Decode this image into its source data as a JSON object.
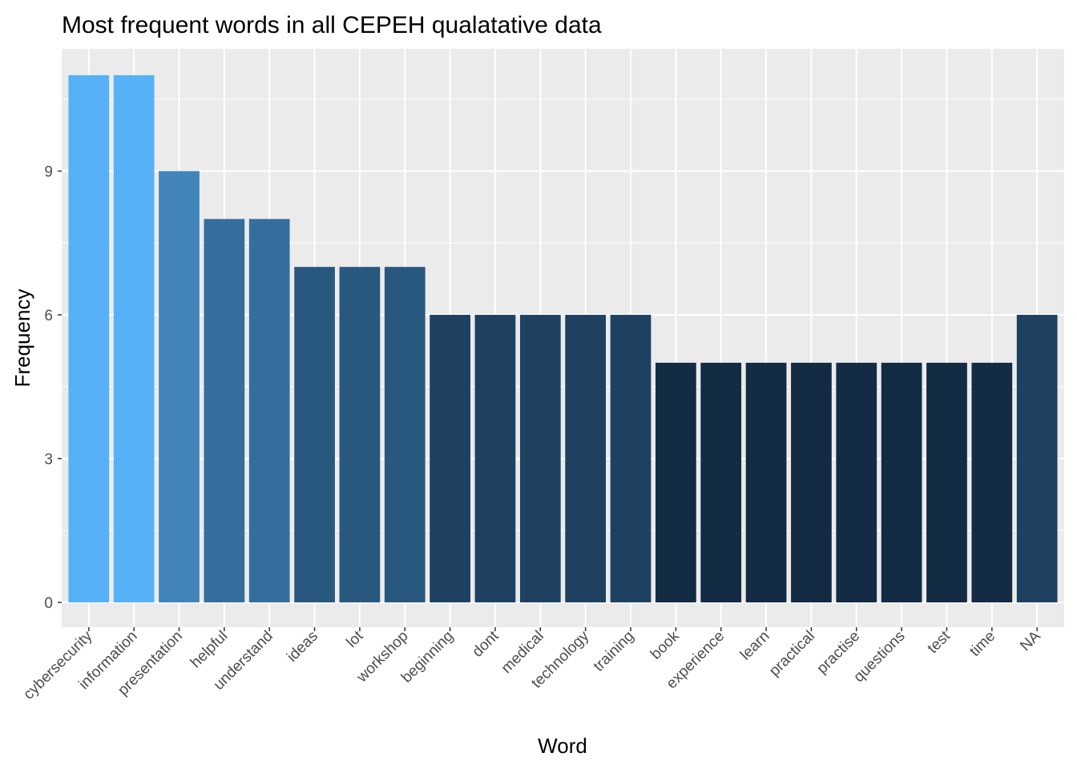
{
  "chart_data": {
    "type": "bar",
    "title": "Most frequent words in all CEPEH qualatative data",
    "xlabel": "Word",
    "ylabel": "Frequency",
    "categories": [
      "cybersecurity",
      "information",
      "presentation",
      "helpful",
      "understand",
      "ideas",
      "lot",
      "workshop",
      "beginning",
      "dont",
      "medical",
      "technology",
      "training",
      "book",
      "experience",
      "learn",
      "practical",
      "practise",
      "questions",
      "test",
      "time",
      "NA"
    ],
    "values": [
      11,
      11,
      9,
      8,
      8,
      7,
      7,
      7,
      6,
      6,
      6,
      6,
      6,
      5,
      5,
      5,
      5,
      5,
      5,
      5,
      5,
      6
    ],
    "ylim": [
      0,
      11.55
    ],
    "yticks": [
      0,
      3,
      6,
      9
    ],
    "ytick_labels": [
      "0",
      "3",
      "6",
      "9"
    ],
    "grid": true,
    "legend": "none",
    "colors": {
      "panel_background": "#EBEBEB",
      "grid_major": "#FFFFFF",
      "fill_low": "#132B43",
      "fill_high": "#56B1F7"
    }
  }
}
